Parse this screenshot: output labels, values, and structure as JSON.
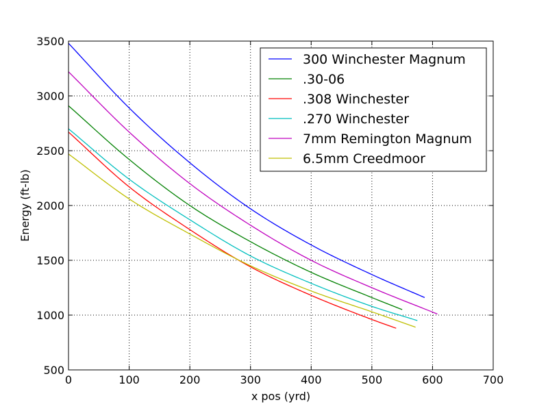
{
  "chart_data": {
    "type": "line",
    "title": "",
    "xlabel": "x pos (yrd)",
    "ylabel": "Energy (ft-lb)",
    "xlim": [
      0,
      700
    ],
    "ylim": [
      500,
      3500
    ],
    "xticks": [
      0,
      100,
      200,
      300,
      400,
      500,
      600,
      700
    ],
    "yticks": [
      500,
      1000,
      1500,
      2000,
      2500,
      3000,
      3500
    ],
    "grid": true,
    "legend_position": "top-right",
    "series": [
      {
        "name": "300 Winchester Magnum",
        "color": "#0000ff",
        "x": [
          0,
          100,
          200,
          300,
          400,
          500,
          587
        ],
        "y": [
          3480,
          2890,
          2390,
          1970,
          1640,
          1370,
          1160
        ]
      },
      {
        "name": ".30-06",
        "color": "#008000",
        "x": [
          0,
          100,
          200,
          300,
          400,
          500,
          550
        ],
        "y": [
          2910,
          2420,
          2000,
          1670,
          1390,
          1160,
          1050
        ]
      },
      {
        "name": ".308 Winchester",
        "color": "#ff0000",
        "x": [
          0,
          100,
          200,
          300,
          400,
          500,
          540
        ],
        "y": [
          2670,
          2170,
          1780,
          1440,
          1180,
          960,
          880
        ]
      },
      {
        "name": ".270 Winchester",
        "color": "#00bfbf",
        "x": [
          0,
          100,
          200,
          300,
          400,
          500,
          575
        ],
        "y": [
          2700,
          2240,
          1870,
          1540,
          1290,
          1080,
          950
        ]
      },
      {
        "name": "7mm Remington Magnum",
        "color": "#bf00bf",
        "x": [
          0,
          100,
          200,
          300,
          400,
          500,
          608
        ],
        "y": [
          3220,
          2670,
          2200,
          1820,
          1500,
          1250,
          1010
        ]
      },
      {
        "name": "6.5mm Creedmoor",
        "color": "#bfbf00",
        "x": [
          0,
          100,
          200,
          300,
          400,
          500,
          572
        ],
        "y": [
          2470,
          2060,
          1740,
          1450,
          1220,
          1030,
          890
        ]
      }
    ]
  }
}
